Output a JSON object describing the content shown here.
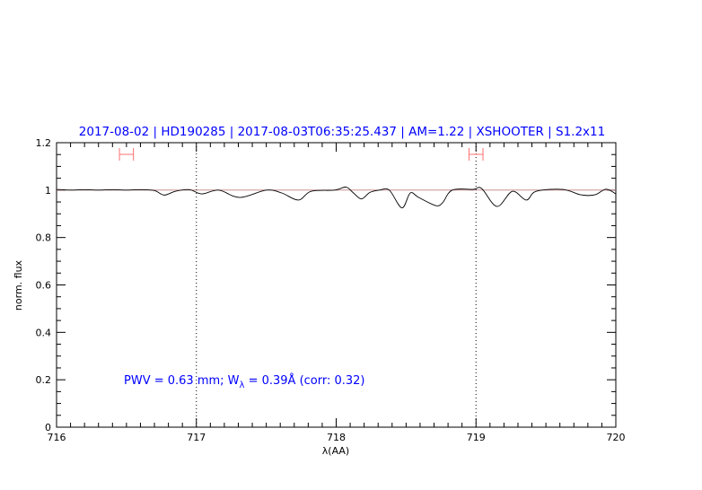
{
  "chart_data": {
    "type": "line",
    "title": "2017-08-02 | HD190285 | 2017-08-03T06:35:25.437 | AM=1.22 | XSHOOTER | S1.2x11",
    "xlabel": "λ(AA)",
    "ylabel": "norm. flux",
    "xlim": [
      716,
      720
    ],
    "ylim": [
      0,
      1.2
    ],
    "xticks": [
      "716",
      "717",
      "718",
      "719",
      "720"
    ],
    "yticks": [
      "0",
      "0.2",
      "0.4",
      "0.6",
      "0.8",
      "1",
      "1.2"
    ],
    "reference_line": 1.0,
    "vertical_markers": [
      717,
      719
    ],
    "range_markers": [
      [
        716.45,
        716.55
      ],
      [
        718.95,
        719.05
      ]
    ],
    "annotation": {
      "prefix": "PWV = 0.63 mm; W",
      "sub": "λ",
      "suffix": " = 0.39Å (corr: 0.32)"
    },
    "colors": {
      "title": "#0000ff",
      "spectrum": "#000000",
      "reference": "#c08080",
      "range": "#ff7070",
      "annotation": "#0000ff"
    },
    "series": [
      {
        "x": [
          716.0,
          716.1,
          716.2,
          716.3,
          716.4,
          716.5,
          716.6,
          716.7,
          716.77,
          716.85,
          716.95,
          717.04,
          717.16,
          717.31,
          717.5,
          717.61,
          717.73,
          717.82,
          717.99,
          718.07,
          718.12,
          718.18,
          718.24,
          718.31,
          718.38,
          718.47,
          718.53,
          718.59,
          718.71,
          718.76,
          718.83,
          718.98,
          719.04,
          719.15,
          719.26,
          719.36,
          719.43,
          719.62,
          719.75,
          719.85,
          719.93,
          720.0
        ],
        "y": [
          1.003,
          1.0,
          1.002,
          1.0,
          1.002,
          1.0,
          1.002,
          0.998,
          0.979,
          0.995,
          1.002,
          0.984,
          1.0,
          0.969,
          1.0,
          0.988,
          0.958,
          0.995,
          1.0,
          1.013,
          0.99,
          0.963,
          0.99,
          1.0,
          1.0,
          0.925,
          0.988,
          0.969,
          0.935,
          0.946,
          1.0,
          1.003,
          1.007,
          0.931,
          0.995,
          0.958,
          0.995,
          1.003,
          0.98,
          0.98,
          1.004,
          0.984
        ]
      }
    ]
  }
}
